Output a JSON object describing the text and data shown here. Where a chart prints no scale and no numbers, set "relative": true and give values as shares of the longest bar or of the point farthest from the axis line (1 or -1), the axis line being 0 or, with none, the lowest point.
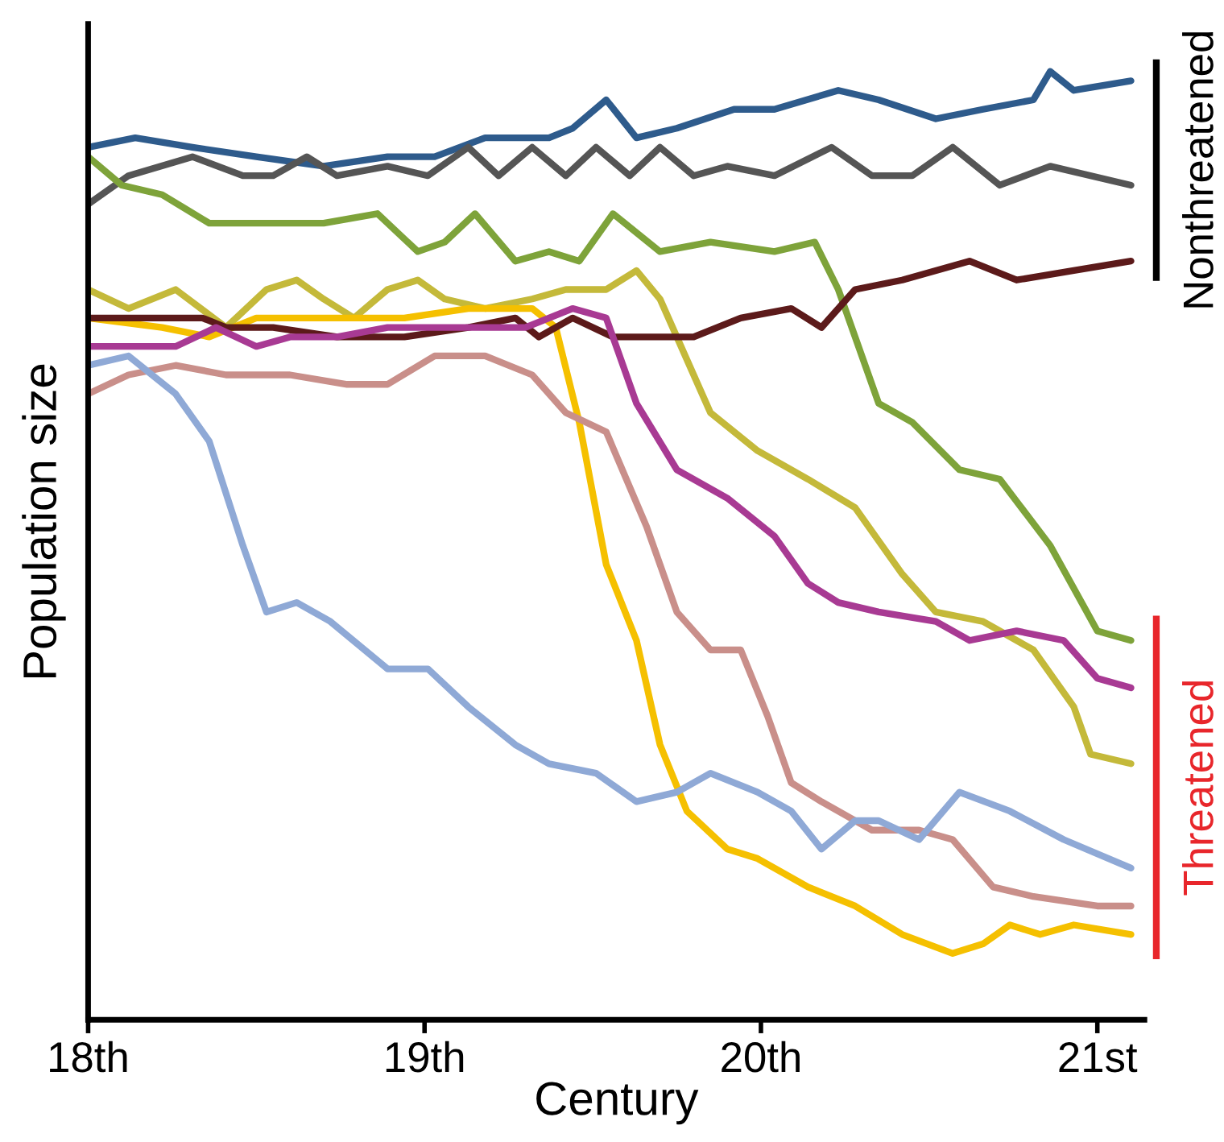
{
  "chart_data": {
    "type": "line",
    "relative": true,
    "xlabel": "Century",
    "ylabel": "Population size",
    "xlim": [
      18,
      21.14
    ],
    "xticks": [
      {
        "value": 18,
        "label": "18th"
      },
      {
        "value": 19,
        "label": "19th"
      },
      {
        "value": 20,
        "label": "20th"
      },
      {
        "value": 21,
        "label": "21st"
      }
    ],
    "grid": false,
    "marker": "none",
    "line_style": "solid",
    "annotations": [
      "Nonthreatened",
      "Threatened"
    ],
    "series": [
      {
        "color": "#2e5b8c",
        "x": [
          18.0,
          18.14,
          18.31,
          18.5,
          18.7,
          18.89,
          19.03,
          19.18,
          19.37,
          19.44,
          19.54,
          19.63,
          19.75,
          19.92,
          20.04,
          20.23,
          20.35,
          20.52,
          20.66,
          20.81,
          20.86,
          20.93,
          21.1
        ],
        "values": [
          0.92,
          0.93,
          0.92,
          0.91,
          0.9,
          0.91,
          0.91,
          0.93,
          0.93,
          0.94,
          0.97,
          0.93,
          0.94,
          0.96,
          0.96,
          0.98,
          0.97,
          0.95,
          0.96,
          0.97,
          1.0,
          0.98,
          0.99
        ]
      },
      {
        "color": "#555555",
        "x": [
          18.0,
          18.12,
          18.31,
          18.46,
          18.55,
          18.65,
          18.74,
          18.89,
          19.01,
          19.13,
          19.22,
          19.32,
          19.42,
          19.51,
          19.61,
          19.7,
          19.8,
          19.9,
          20.04,
          20.21,
          20.33,
          20.45,
          20.57,
          20.71,
          20.86,
          21.1
        ],
        "values": [
          0.86,
          0.89,
          0.91,
          0.89,
          0.89,
          0.91,
          0.89,
          0.9,
          0.89,
          0.92,
          0.89,
          0.92,
          0.89,
          0.92,
          0.89,
          0.92,
          0.89,
          0.9,
          0.89,
          0.92,
          0.89,
          0.89,
          0.92,
          0.88,
          0.9,
          0.88
        ]
      },
      {
        "color": "#7ea33a",
        "x": [
          18.0,
          18.1,
          18.22,
          18.36,
          18.55,
          18.7,
          18.86,
          18.98,
          19.06,
          19.15,
          19.27,
          19.37,
          19.46,
          19.56,
          19.7,
          19.85,
          20.04,
          20.16,
          20.23,
          20.35,
          20.45,
          20.59,
          20.71,
          20.86,
          21.0,
          21.1
        ],
        "values": [
          0.91,
          0.88,
          0.87,
          0.84,
          0.84,
          0.84,
          0.85,
          0.81,
          0.82,
          0.85,
          0.8,
          0.81,
          0.8,
          0.85,
          0.81,
          0.82,
          0.81,
          0.82,
          0.77,
          0.65,
          0.63,
          0.58,
          0.57,
          0.5,
          0.41,
          0.4
        ]
      },
      {
        "color": "#c4b93a",
        "x": [
          18.0,
          18.12,
          18.26,
          18.41,
          18.53,
          18.62,
          18.7,
          18.79,
          18.89,
          18.98,
          19.06,
          19.18,
          19.32,
          19.42,
          19.54,
          19.63,
          19.7,
          19.85,
          19.99,
          20.14,
          20.28,
          20.42,
          20.52,
          20.66,
          20.81,
          20.93,
          20.98,
          21.1
        ],
        "values": [
          0.77,
          0.75,
          0.77,
          0.73,
          0.77,
          0.78,
          0.76,
          0.74,
          0.77,
          0.78,
          0.76,
          0.75,
          0.76,
          0.77,
          0.77,
          0.79,
          0.76,
          0.64,
          0.6,
          0.57,
          0.54,
          0.47,
          0.43,
          0.42,
          0.39,
          0.33,
          0.28,
          0.27
        ]
      },
      {
        "color": "#f5c000",
        "x": [
          18.0,
          18.22,
          18.36,
          18.5,
          18.74,
          18.94,
          19.13,
          19.32,
          19.39,
          19.46,
          19.54,
          19.63,
          19.7,
          19.78,
          19.9,
          19.99,
          20.14,
          20.28,
          20.42,
          20.57,
          20.66,
          20.74,
          20.83,
          20.93,
          21.1
        ],
        "values": [
          0.74,
          0.73,
          0.72,
          0.74,
          0.74,
          0.74,
          0.75,
          0.75,
          0.73,
          0.63,
          0.48,
          0.4,
          0.29,
          0.22,
          0.18,
          0.17,
          0.14,
          0.12,
          0.09,
          0.07,
          0.08,
          0.1,
          0.09,
          0.1,
          0.09
        ]
      },
      {
        "color": "#5c1a1a",
        "x": [
          18.0,
          18.17,
          18.34,
          18.41,
          18.55,
          18.74,
          18.94,
          19.13,
          19.27,
          19.34,
          19.44,
          19.56,
          19.66,
          19.8,
          19.94,
          20.09,
          20.18,
          20.28,
          20.42,
          20.62,
          20.76,
          20.93,
          21.1
        ],
        "values": [
          0.74,
          0.74,
          0.74,
          0.73,
          0.73,
          0.72,
          0.72,
          0.73,
          0.74,
          0.72,
          0.74,
          0.72,
          0.72,
          0.72,
          0.74,
          0.75,
          0.73,
          0.77,
          0.78,
          0.8,
          0.78,
          0.79,
          0.8
        ]
      },
      {
        "color": "#a83a93",
        "x": [
          18.0,
          18.12,
          18.26,
          18.38,
          18.5,
          18.6,
          18.74,
          18.89,
          19.03,
          19.18,
          19.3,
          19.44,
          19.54,
          19.63,
          19.75,
          19.9,
          20.04,
          20.14,
          20.23,
          20.35,
          20.52,
          20.62,
          20.76,
          20.9,
          21.0,
          21.1
        ],
        "values": [
          0.71,
          0.71,
          0.71,
          0.73,
          0.71,
          0.72,
          0.72,
          0.73,
          0.73,
          0.73,
          0.73,
          0.75,
          0.74,
          0.65,
          0.58,
          0.55,
          0.51,
          0.46,
          0.44,
          0.43,
          0.42,
          0.4,
          0.41,
          0.4,
          0.36,
          0.35
        ]
      },
      {
        "color": "#c98f8a",
        "x": [
          18.0,
          18.12,
          18.26,
          18.41,
          18.6,
          18.77,
          18.89,
          19.03,
          19.18,
          19.32,
          19.42,
          19.54,
          19.66,
          19.75,
          19.85,
          19.94,
          20.02,
          20.09,
          20.18,
          20.33,
          20.47,
          20.57,
          20.69,
          20.81,
          21.0,
          21.1
        ],
        "values": [
          0.66,
          0.68,
          0.69,
          0.68,
          0.68,
          0.67,
          0.67,
          0.7,
          0.7,
          0.68,
          0.64,
          0.62,
          0.52,
          0.43,
          0.39,
          0.39,
          0.32,
          0.25,
          0.23,
          0.2,
          0.2,
          0.19,
          0.14,
          0.13,
          0.12,
          0.12
        ]
      },
      {
        "color": "#8fa9d6",
        "x": [
          18.0,
          18.12,
          18.26,
          18.36,
          18.46,
          18.53,
          18.62,
          18.72,
          18.89,
          19.01,
          19.13,
          19.27,
          19.37,
          19.51,
          19.63,
          19.75,
          19.85,
          19.99,
          20.09,
          20.18,
          20.28,
          20.35,
          20.47,
          20.59,
          20.74,
          20.9,
          21.1
        ],
        "values": [
          0.69,
          0.7,
          0.66,
          0.61,
          0.5,
          0.43,
          0.44,
          0.42,
          0.37,
          0.37,
          0.33,
          0.29,
          0.27,
          0.26,
          0.23,
          0.24,
          0.26,
          0.24,
          0.22,
          0.18,
          0.21,
          0.21,
          0.19,
          0.24,
          0.22,
          0.19,
          0.16
        ]
      }
    ]
  }
}
